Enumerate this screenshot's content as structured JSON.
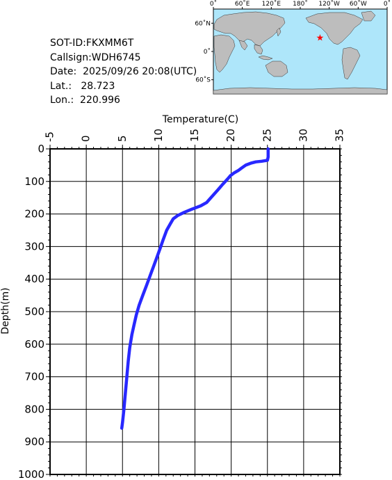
{
  "info": {
    "sot_id": "SOT-ID:FKXMM6T",
    "callsign": "Callsign:WDH6745",
    "date": "Date:  2025/09/26 20:08(UTC)",
    "lat": "Lat.:   28.723",
    "lon": "Lon.:  220.996"
  },
  "map": {
    "lon_labels": [
      "0˚",
      "60˚E",
      "120˚E",
      "180˚",
      "120˚W",
      "60˚W",
      "0˚"
    ],
    "lat_labels": [
      "60˚N",
      "0˚",
      "60˚S"
    ],
    "ocean_color": "#aee6fa",
    "land_color": "#bdbdbd",
    "marker_color": "#ff0000",
    "marker": {
      "lon": 220.996,
      "lat": 28.723
    }
  },
  "chart_data": {
    "type": "line",
    "xlabel": "Temperature(C)",
    "ylabel": "Depth(m)",
    "xlim": [
      -5,
      35
    ],
    "ylim": [
      0,
      1000
    ],
    "y_inverted": true,
    "x_ticks": [
      "-5",
      "0",
      "5",
      "10",
      "15",
      "20",
      "25",
      "30",
      "35"
    ],
    "y_ticks": [
      "0",
      "100",
      "200",
      "300",
      "400",
      "500",
      "600",
      "700",
      "800",
      "900",
      "1000"
    ],
    "grid": true,
    "line_color": "#2828ff",
    "series": [
      {
        "points": [
          [
            25.1,
            0
          ],
          [
            25.1,
            5
          ],
          [
            25.1,
            15
          ],
          [
            25.1,
            25
          ],
          [
            25.0,
            35
          ],
          [
            24.2,
            38
          ],
          [
            23.4,
            40
          ],
          [
            22.7,
            44
          ],
          [
            22.0,
            50
          ],
          [
            21.5,
            58
          ],
          [
            21.0,
            66
          ],
          [
            20.4,
            74
          ],
          [
            19.9,
            82
          ],
          [
            19.6,
            90
          ],
          [
            19.2,
            100
          ],
          [
            18.7,
            112
          ],
          [
            18.2,
            125
          ],
          [
            17.2,
            150
          ],
          [
            16.6,
            165
          ],
          [
            15.8,
            175
          ],
          [
            14.6,
            185
          ],
          [
            13.5,
            195
          ],
          [
            12.6,
            205
          ],
          [
            12.0,
            215
          ],
          [
            11.6,
            230
          ],
          [
            11.1,
            250
          ],
          [
            10.6,
            280
          ],
          [
            10.2,
            305
          ],
          [
            9.8,
            330
          ],
          [
            9.3,
            360
          ],
          [
            8.8,
            390
          ],
          [
            8.3,
            420
          ],
          [
            7.8,
            450
          ],
          [
            7.3,
            480
          ],
          [
            6.9,
            510
          ],
          [
            6.6,
            540
          ],
          [
            6.3,
            570
          ],
          [
            6.0,
            610
          ],
          [
            5.8,
            650
          ],
          [
            5.6,
            700
          ],
          [
            5.4,
            750
          ],
          [
            5.2,
            800
          ],
          [
            5.0,
            840
          ],
          [
            4.9,
            858
          ]
        ]
      }
    ]
  }
}
